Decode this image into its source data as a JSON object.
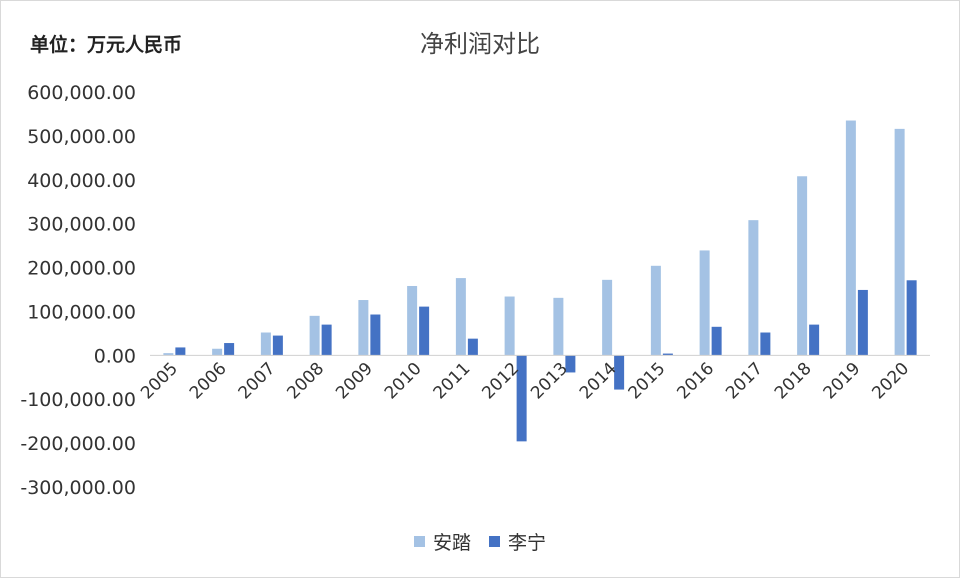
{
  "unit_label": "单位：万元人民币",
  "chart_data": {
    "type": "bar",
    "title": "净利润对比",
    "xlabel": "",
    "ylabel": "单位：万元人民币",
    "categories": [
      "2005",
      "2006",
      "2007",
      "2008",
      "2009",
      "2010",
      "2011",
      "2012",
      "2013",
      "2014",
      "2015",
      "2016",
      "2017",
      "2018",
      "2019",
      "2020"
    ],
    "series": [
      {
        "name": "安踏",
        "color": "#a4c2e4",
        "values": [
          5000,
          15000,
          52000,
          90000,
          126000,
          158000,
          176000,
          134000,
          131000,
          172000,
          204000,
          239000,
          308000,
          408000,
          535000,
          516000
        ]
      },
      {
        "name": "李宁",
        "color": "#4472c4",
        "values": [
          18000,
          28000,
          45000,
          70000,
          93000,
          111000,
          38000,
          -196000,
          -39000,
          -78000,
          4000,
          65000,
          52000,
          70000,
          149000,
          171000
        ]
      }
    ],
    "ylim": [
      -300000,
      600000
    ],
    "yticks": [
      {
        "value": 600000,
        "label": "600,000.00"
      },
      {
        "value": 500000,
        "label": "500,000.00"
      },
      {
        "value": 400000,
        "label": "400,000.00"
      },
      {
        "value": 300000,
        "label": "300,000.00"
      },
      {
        "value": 200000,
        "label": "200,000.00"
      },
      {
        "value": 100000,
        "label": "100,000.00"
      },
      {
        "value": 0,
        "label": "0.00"
      },
      {
        "value": -100000,
        "label": "-100,000.00"
      },
      {
        "value": -200000,
        "label": "-200,000.00"
      },
      {
        "value": -300000,
        "label": "-300,000.00"
      }
    ],
    "grid": false,
    "legend_position": "bottom"
  }
}
